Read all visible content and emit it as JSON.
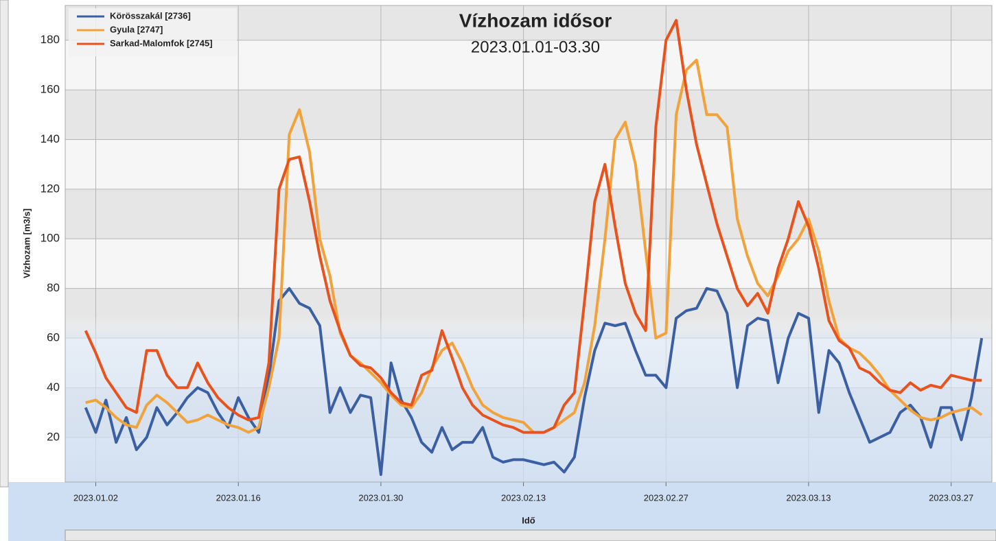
{
  "chart_data": {
    "type": "line",
    "title": "Vízhozam idősor",
    "subtitle": "2023.01.01-03.30",
    "y_label": "Vízhozam [m3/s]",
    "x_label": "Idő",
    "x": [
      "2023.01.01",
      "2023.01.02",
      "2023.01.03",
      "2023.01.04",
      "2023.01.05",
      "2023.01.06",
      "2023.01.07",
      "2023.01.08",
      "2023.01.09",
      "2023.01.10",
      "2023.01.11",
      "2023.01.12",
      "2023.01.13",
      "2023.01.14",
      "2023.01.15",
      "2023.01.16",
      "2023.01.17",
      "2023.01.18",
      "2023.01.19",
      "2023.01.20",
      "2023.01.21",
      "2023.01.22",
      "2023.01.23",
      "2023.01.24",
      "2023.01.25",
      "2023.01.26",
      "2023.01.27",
      "2023.01.28",
      "2023.01.29",
      "2023.01.30",
      "2023.01.31",
      "2023.02.01",
      "2023.02.02",
      "2023.02.03",
      "2023.02.04",
      "2023.02.05",
      "2023.02.06",
      "2023.02.07",
      "2023.02.08",
      "2023.02.09",
      "2023.02.10",
      "2023.02.11",
      "2023.02.12",
      "2023.02.13",
      "2023.02.14",
      "2023.02.15",
      "2023.02.16",
      "2023.02.17",
      "2023.02.18",
      "2023.02.19",
      "2023.02.20",
      "2023.02.21",
      "2023.02.22",
      "2023.02.23",
      "2023.02.24",
      "2023.02.25",
      "2023.02.26",
      "2023.02.27",
      "2023.02.28",
      "2023.03.01",
      "2023.03.02",
      "2023.03.03",
      "2023.03.04",
      "2023.03.05",
      "2023.03.06",
      "2023.03.07",
      "2023.03.08",
      "2023.03.09",
      "2023.03.10",
      "2023.03.11",
      "2023.03.12",
      "2023.03.13",
      "2023.03.14",
      "2023.03.15",
      "2023.03.16",
      "2023.03.17",
      "2023.03.18",
      "2023.03.19",
      "2023.03.20",
      "2023.03.21",
      "2023.03.22",
      "2023.03.23",
      "2023.03.24",
      "2023.03.25",
      "2023.03.26",
      "2023.03.27",
      "2023.03.28",
      "2023.03.29",
      "2023.03.30"
    ],
    "series": [
      {
        "name": "Körösszakál [2736]",
        "color": "#3b5fa3",
        "values": [
          32,
          22,
          35,
          18,
          28,
          15,
          20,
          32,
          25,
          30,
          36,
          40,
          38,
          30,
          24,
          36,
          28,
          22,
          44,
          75,
          80,
          74,
          72,
          65,
          30,
          40,
          30,
          37,
          36,
          5,
          50,
          35,
          28,
          18,
          14,
          24,
          15,
          18,
          18,
          24,
          12,
          10,
          11,
          11,
          10,
          9,
          10,
          6,
          12,
          36,
          55,
          66,
          65,
          66,
          55,
          45,
          45,
          40,
          68,
          71,
          72,
          80,
          79,
          70,
          40,
          65,
          68,
          67,
          42,
          60,
          70,
          68,
          30,
          55,
          50,
          38,
          28,
          18,
          20,
          22,
          30,
          33,
          28,
          16,
          32,
          32,
          19,
          36,
          60
        ]
      },
      {
        "name": "Gyula [2747]",
        "color": "#f2a23a",
        "values": [
          34,
          35,
          32,
          28,
          25,
          24,
          33,
          37,
          34,
          30,
          26,
          27,
          29,
          27,
          25,
          24,
          22,
          24,
          40,
          60,
          142,
          152,
          135,
          100,
          85,
          62,
          53,
          50,
          46,
          42,
          37,
          33,
          32,
          38,
          48,
          55,
          58,
          50,
          40,
          33,
          30,
          28,
          27,
          26,
          22,
          22,
          24,
          27,
          30,
          42,
          65,
          100,
          140,
          147,
          130,
          95,
          60,
          62,
          150,
          168,
          172,
          150,
          150,
          145,
          108,
          93,
          82,
          77,
          85,
          95,
          100,
          108,
          95,
          75,
          60,
          56,
          54,
          50,
          45,
          39,
          35,
          31,
          28,
          27,
          28,
          30,
          31,
          32,
          29
        ]
      },
      {
        "name": "Sarkad-Malomfok [2745]",
        "color": "#e8521c",
        "values": [
          63,
          54,
          44,
          38,
          32,
          30,
          55,
          55,
          45,
          40,
          40,
          50,
          42,
          36,
          32,
          29,
          27,
          28,
          50,
          120,
          132,
          133,
          115,
          93,
          75,
          63,
          53,
          49,
          48,
          44,
          38,
          34,
          33,
          45,
          47,
          63,
          52,
          40,
          33,
          29,
          27,
          25,
          24,
          22,
          22,
          22,
          24,
          33,
          38,
          75,
          115,
          130,
          105,
          82,
          70,
          63,
          145,
          180,
          188,
          160,
          138,
          122,
          106,
          93,
          80,
          73,
          78,
          70,
          88,
          100,
          115,
          105,
          88,
          67,
          59,
          56,
          48,
          46,
          42,
          39,
          38,
          42,
          39,
          41,
          40,
          45,
          44,
          43,
          43
        ]
      }
    ],
    "xlim": [
      "2022.12.30",
      "2023.03.31"
    ],
    "xticks": [
      "2023.01.02",
      "2023.01.16",
      "2023.01.30",
      "2023.02.13",
      "2023.02.27",
      "2023.03.13",
      "2023.03.27"
    ],
    "ylim": [
      2,
      194
    ],
    "yticks": [
      20,
      40,
      60,
      80,
      100,
      120,
      140,
      160,
      180
    ],
    "grid": true,
    "legend": "upper left"
  }
}
